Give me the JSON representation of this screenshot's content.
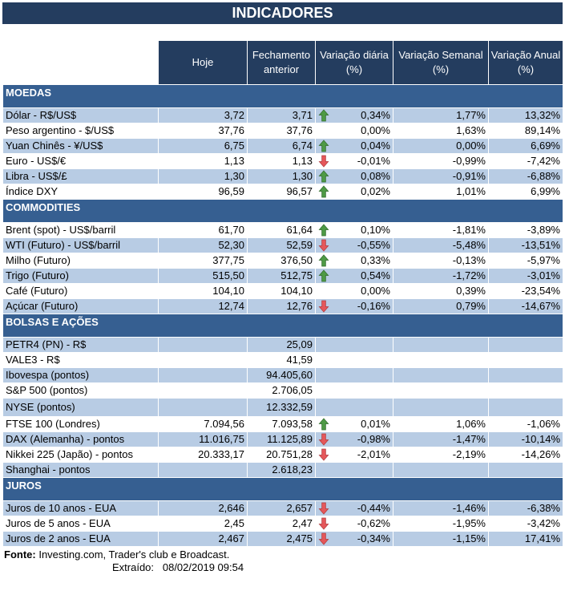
{
  "title": "INDICADORES",
  "columns": [
    "",
    "Hoje",
    "Fechamento anterior",
    "Variação diária (%)",
    "Variação Semanal (%)",
    "Variação Anual (%)"
  ],
  "colors": {
    "header": "#243d5f",
    "section": "#365f91",
    "band": "#b8cce4",
    "up": "#4e9a45",
    "down": "#e5575a"
  },
  "sections": [
    {
      "name": "MOEDAS",
      "rows": [
        {
          "label": "Dólar - R$/US$",
          "hoje": "3,72",
          "fech": "3,71",
          "arrow": "up",
          "dia": "0,34%",
          "sem": "1,77%",
          "ano": "13,32%"
        },
        {
          "label": "Peso argentino - $/US$",
          "hoje": "37,76",
          "fech": "37,76",
          "arrow": null,
          "dia": "0,00%",
          "sem": "1,63%",
          "ano": "89,14%"
        },
        {
          "label": "Yuan Chinês - ¥/US$",
          "hoje": "6,75",
          "fech": "6,74",
          "arrow": "up",
          "dia": "0,04%",
          "sem": "0,00%",
          "ano": "6,69%"
        },
        {
          "label": "Euro - US$/€",
          "hoje": "1,13",
          "fech": "1,13",
          "arrow": "down",
          "dia": "-0,01%",
          "sem": "-0,99%",
          "ano": "-7,42%"
        },
        {
          "label": "Libra - US$/£",
          "hoje": "1,30",
          "fech": "1,30",
          "arrow": "up",
          "dia": "0,08%",
          "sem": "-0,91%",
          "ano": "-6,88%"
        },
        {
          "label": "Índice DXY",
          "hoje": "96,59",
          "fech": "96,57",
          "arrow": "up",
          "dia": "0,02%",
          "sem": "1,01%",
          "ano": "6,99%"
        }
      ]
    },
    {
      "name": "COMMODITIES",
      "rows": [
        {
          "label": "Brent (spot) - US$/barril",
          "hoje": "61,70",
          "fech": "61,64",
          "arrow": "up",
          "dia": "0,10%",
          "sem": "-1,81%",
          "ano": "-3,89%"
        },
        {
          "label": "WTI (Futuro) - US$/barril",
          "hoje": "52,30",
          "fech": "52,59",
          "arrow": "down",
          "dia": "-0,55%",
          "sem": "-5,48%",
          "ano": "-13,51%"
        },
        {
          "label": "Milho (Futuro)",
          "hoje": "377,75",
          "fech": "376,50",
          "arrow": "up",
          "dia": "0,33%",
          "sem": "-0,13%",
          "ano": "-5,97%"
        },
        {
          "label": "Trigo (Futuro)",
          "hoje": "515,50",
          "fech": "512,75",
          "arrow": "up",
          "dia": "0,54%",
          "sem": "-1,72%",
          "ano": "-3,01%"
        },
        {
          "label": "Café (Futuro)",
          "hoje": "104,10",
          "fech": "104,10",
          "arrow": null,
          "dia": "0,00%",
          "sem": "0,39%",
          "ano": "-23,54%"
        },
        {
          "label": "Açúcar (Futuro)",
          "hoje": "12,74",
          "fech": "12,76",
          "arrow": "down",
          "dia": "-0,16%",
          "sem": "0,79%",
          "ano": "-14,67%"
        }
      ]
    },
    {
      "name": "BOLSAS E AÇÕES",
      "rows": [
        {
          "label": "PETR4 (PN) - R$",
          "hoje": "",
          "fech": "25,09",
          "arrow": null,
          "dia": "",
          "sem": "",
          "ano": ""
        },
        {
          "label": "VALE3 - R$",
          "hoje": "",
          "fech": "41,59",
          "arrow": null,
          "dia": "",
          "sem": "",
          "ano": ""
        },
        {
          "label": "Ibovespa (pontos)",
          "hoje": "",
          "fech": "94.405,60",
          "arrow": null,
          "dia": "",
          "sem": "",
          "ano": ""
        },
        {
          "label": "S&P 500 (pontos)",
          "hoje": "",
          "fech": "2.706,05",
          "arrow": null,
          "dia": "",
          "sem": "",
          "ano": ""
        },
        {
          "label": "NYSE (pontos)",
          "hoje": "",
          "fech": "12.332,59",
          "arrow": null,
          "dia": "",
          "sem": "",
          "ano": ""
        },
        {
          "label": "FTSE 100 (Londres)",
          "hoje": "7.094,56",
          "fech": "7.093,58",
          "arrow": "up",
          "dia": "0,01%",
          "sem": "1,06%",
          "ano": "-1,06%"
        },
        {
          "label": "DAX (Alemanha) - pontos",
          "hoje": "11.016,75",
          "fech": "11.125,89",
          "arrow": "down",
          "dia": "-0,98%",
          "sem": "-1,47%",
          "ano": "-10,14%"
        },
        {
          "label": "Nikkei 225 (Japão) - pontos",
          "hoje": "20.333,17",
          "fech": "20.751,28",
          "arrow": "down",
          "dia": "-2,01%",
          "sem": "-2,19%",
          "ano": "-14,26%"
        },
        {
          "label": "Shanghai - pontos",
          "hoje": "",
          "fech": "2.618,23",
          "arrow": null,
          "dia": "",
          "sem": "",
          "ano": ""
        }
      ]
    },
    {
      "name": "JUROS",
      "rows": [
        {
          "label": "Juros de 10 anos - EUA",
          "hoje": "2,646",
          "fech": "2,657",
          "arrow": "down",
          "dia": "-0,44%",
          "sem": "-1,46%",
          "ano": "-6,38%"
        },
        {
          "label": "Juros de 5 anos - EUA",
          "hoje": "2,45",
          "fech": "2,47",
          "arrow": "down",
          "dia": "-0,62%",
          "sem": "-1,95%",
          "ano": "-3,42%"
        },
        {
          "label": "Juros de 2 anos - EUA",
          "hoje": "2,467",
          "fech": "2,475",
          "arrow": "down",
          "dia": "-0,34%",
          "sem": "-1,15%",
          "ano": "17,41%"
        }
      ]
    }
  ],
  "footer": {
    "source_label": "Fonte:",
    "source_text": " Investing.com, Trader's club e Broadcast.",
    "extracted": "Extraído:   08/02/2019 09:54"
  }
}
